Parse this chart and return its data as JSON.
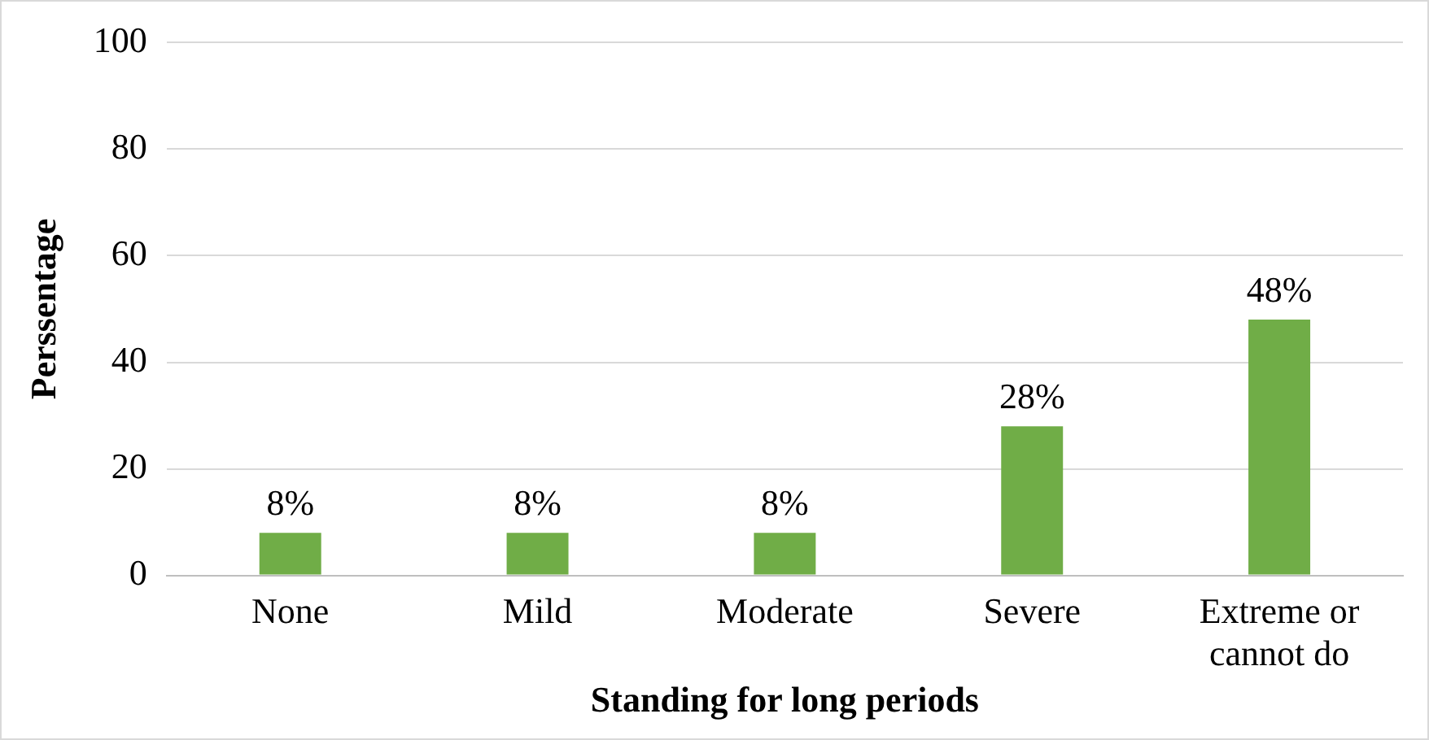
{
  "chart_data": {
    "type": "bar",
    "xlabel": "Standing for long periods",
    "ylabel": "Perssentage",
    "categories": [
      "None",
      "Mild",
      "Moderate",
      "Severe",
      "Extreme or cannot do"
    ],
    "values": [
      8,
      8,
      8,
      28,
      48
    ],
    "value_labels": [
      "8%",
      "8%",
      "8%",
      "28%",
      "48%"
    ],
    "color": "#70ad47",
    "ylim": [
      0,
      100
    ],
    "yticks": [
      0,
      20,
      40,
      60,
      80,
      100
    ],
    "grid": "y"
  }
}
